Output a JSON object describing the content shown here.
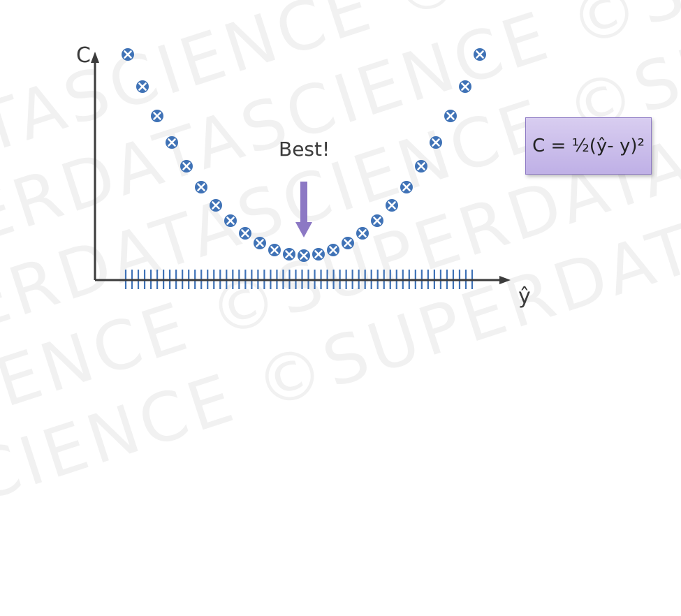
{
  "watermark": {
    "lines": [
      "DATASCIENCE ©SUPERDATASCIENCE",
      "©SUPERDATASCIENCE ©SUPERDATA",
      "CE ©SUPERDATASCIENCE ©SUPER",
      "SCIENCE ©SUPERDATASCIENCE ©",
      "DATASCIENCE ©SUPERDATASCIENCE"
    ]
  },
  "axes": {
    "y_label": "C",
    "x_label": "ŷ"
  },
  "annotation": {
    "text": "Best!",
    "arrow_color": "#8c78c4"
  },
  "formula": {
    "text": "C = ½(ŷ- y)²",
    "fill": "#cdbff0",
    "border": "#8c78c4"
  },
  "colors": {
    "marker": "#3f72b6",
    "axis": "#3b3b3b",
    "tick": "#3f72b6"
  },
  "curve": {
    "points": [
      [
        -12.0,
        144
      ],
      [
        -11.0,
        121
      ],
      [
        -10.0,
        100
      ],
      [
        -9.0,
        81
      ],
      [
        -8.0,
        64
      ],
      [
        -7.0,
        49
      ],
      [
        -6.0,
        36
      ],
      [
        -5.0,
        25
      ],
      [
        -4.0,
        16
      ],
      [
        -3.0,
        9
      ],
      [
        -2.0,
        4
      ],
      [
        -1.0,
        1
      ],
      [
        0.0,
        0
      ],
      [
        1.0,
        1
      ],
      [
        2.0,
        4
      ],
      [
        3.0,
        9
      ],
      [
        4.0,
        16
      ],
      [
        5.0,
        25
      ],
      [
        6.0,
        36
      ],
      [
        7.0,
        49
      ],
      [
        8.0,
        64
      ],
      [
        9.0,
        81
      ],
      [
        10.0,
        100
      ],
      [
        11.0,
        121
      ],
      [
        12.0,
        144
      ]
    ],
    "tick_count": 56
  }
}
